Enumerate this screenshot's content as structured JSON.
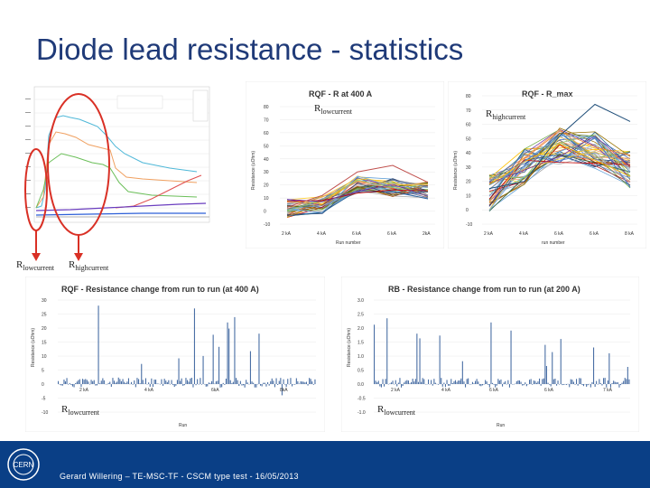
{
  "slide": {
    "title": "Diode lead resistance - statistics",
    "footer": "Gerard Willering – TE-MSC-TF - CSCM type test - 16/05/2013",
    "footer_logo_text": "CERN"
  },
  "annotations": {
    "r_low": "R",
    "r_low_sub": "lowcurrent",
    "r_high": "R",
    "r_high_sub": "highcurrent"
  },
  "colors": {
    "title": "#1f3a78",
    "footer_bg": "#0a3f86",
    "annotation_red": "#d93025"
  },
  "chart_data": [
    {
      "type": "line",
      "title": "RQF - R at 400 A",
      "xlabel": "Run number",
      "ylabel": "Resistance (uOhm)",
      "categories": [
        "2 kA",
        "4 kA",
        "6 kA",
        "6 kA",
        "2kA"
      ],
      "ylim": [
        -10,
        80
      ],
      "yticks": [
        -10,
        0,
        10,
        20,
        30,
        40,
        50,
        60,
        70,
        80
      ],
      "annotation": "R lowcurrent",
      "series_count": 40
    },
    {
      "type": "line",
      "title": "RQF - R_max",
      "xlabel": "run number",
      "ylabel": "Resistance (uOhm)",
      "categories": [
        "2 kA",
        "4 kA",
        "6 kA",
        "6 kA",
        "8 kA"
      ],
      "ylim": [
        -10,
        80
      ],
      "yticks": [
        -10,
        0,
        10,
        20,
        30,
        40,
        50,
        60,
        70,
        80
      ],
      "annotation": "R highcurrent",
      "series_count": 45
    },
    {
      "type": "bar",
      "title": "RQF - Resistance change from run to run  (at 400 A)",
      "xlabel": "Run",
      "ylabel": "Resistance (uOhm)",
      "tick_labels": [
        "2 kA",
        "4 kA",
        "6kA",
        "8kA"
      ],
      "ylim": [
        -10,
        30
      ],
      "yticks": [
        -10,
        -5,
        0,
        5,
        10,
        15,
        20,
        25,
        30
      ],
      "annotation": "R lowcurrent"
    },
    {
      "type": "bar",
      "title": "RB - Resistance change from run to run  (at 200 A)",
      "xlabel": "Run",
      "ylabel": "Resistance (uOhm)",
      "tick_labels": [
        "2 kA",
        "4 kA",
        "6 kA",
        "6 kA",
        "7 kA"
      ],
      "ylim": [
        -1.0,
        3.0
      ],
      "yticks": [
        "-1.0",
        "-0.5",
        "0.0",
        "0.5",
        "1.0",
        "1.5",
        "2.0",
        "2.5",
        "3.0"
      ],
      "annotation": "R lowcurrent"
    }
  ]
}
